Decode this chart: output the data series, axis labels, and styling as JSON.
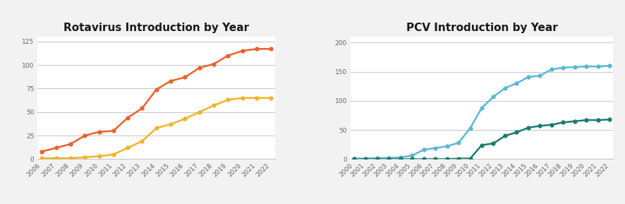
{
  "rota": {
    "title": "Rotavirus Introduction by Year",
    "years": [
      2006,
      2007,
      2008,
      2009,
      2010,
      2011,
      2012,
      2013,
      2014,
      2015,
      2016,
      2017,
      2018,
      2019,
      2020,
      2021,
      2022
    ],
    "global": [
      8,
      12,
      16,
      25,
      29,
      30,
      44,
      54,
      74,
      83,
      87,
      97,
      101,
      110,
      115,
      117,
      117
    ],
    "gavi": [
      1,
      1,
      1,
      2,
      3,
      5,
      12,
      19,
      33,
      37,
      43,
      50,
      57,
      63,
      65,
      65,
      65
    ],
    "global_color": "#E8622A",
    "gavi_color": "#F0B429",
    "ylim": [
      0,
      130
    ],
    "yticks": [
      0,
      25,
      50,
      75,
      100,
      125
    ],
    "markersize": 3.5
  },
  "pcv": {
    "title": "PCV Introduction by Year",
    "years": [
      2000,
      2001,
      2002,
      2003,
      2004,
      2005,
      2006,
      2007,
      2008,
      2009,
      2010,
      2011,
      2012,
      2013,
      2014,
      2015,
      2016,
      2017,
      2018,
      2019,
      2020,
      2021,
      2022
    ],
    "global": [
      1,
      1,
      2,
      2,
      3,
      6,
      16,
      19,
      22,
      28,
      53,
      88,
      107,
      122,
      130,
      141,
      143,
      154,
      157,
      158,
      159,
      159,
      160
    ],
    "gavi": [
      0,
      0,
      0,
      0,
      0,
      0,
      0,
      0,
      0,
      1,
      1,
      24,
      27,
      40,
      46,
      54,
      57,
      59,
      63,
      65,
      67,
      67,
      68
    ],
    "global_color": "#5BB8D4",
    "gavi_color": "#1A7C6D",
    "ylim": [
      0,
      210
    ],
    "yticks": [
      0,
      50,
      100,
      150,
      200
    ],
    "markersize": 3.5
  },
  "background_color": "#FFFFFF",
  "outer_background": "#F2F2F2",
  "grid_color": "#BBBBBB",
  "title_fontsize": 11,
  "tick_fontsize": 6.5,
  "legend_fontsize": 8,
  "line_width": 1.8
}
